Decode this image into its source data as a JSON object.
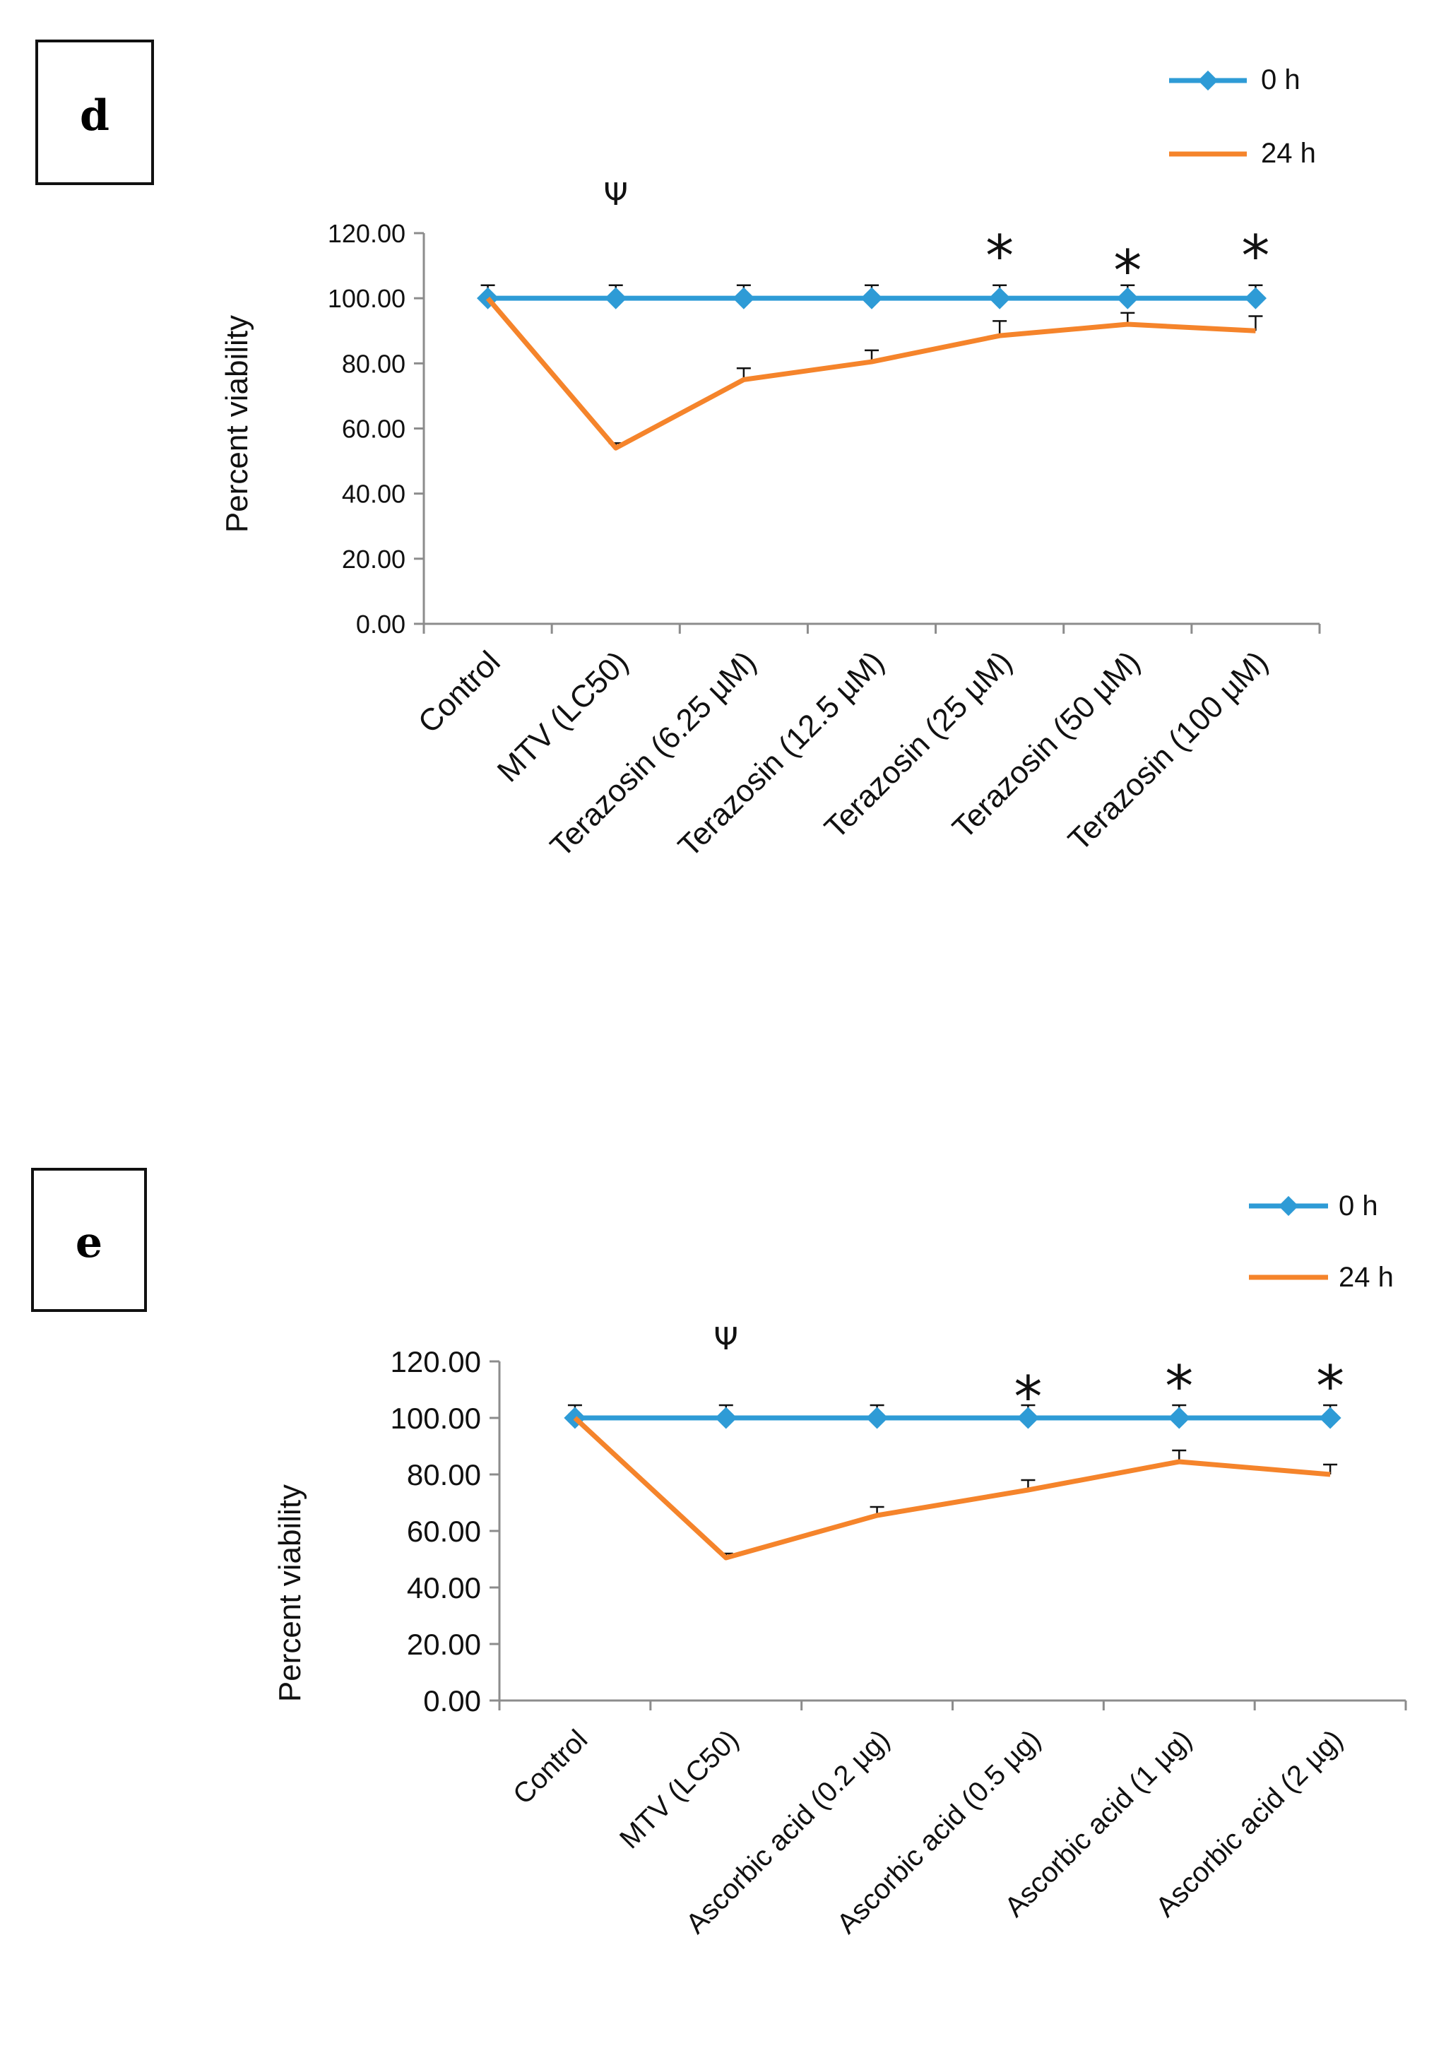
{
  "colors": {
    "series_0h": "#2E9BD6",
    "series_24h": "#F5842B",
    "axis": "#8c8c8c",
    "text": "#111111"
  },
  "chart_data": [
    {
      "panel_label": "d",
      "type": "line",
      "ylabel": "Percent viability",
      "ylim": [
        0,
        120
      ],
      "yticks": [
        0,
        20,
        40,
        60,
        80,
        100,
        120
      ],
      "ytick_labels": [
        "0.00",
        "20.00",
        "40.00",
        "60.00",
        "80.00",
        "100.00",
        "120.00"
      ],
      "categories": [
        "Control",
        "MTV (LC50)",
        "Terazosin (6.25 µM)",
        "Terazosin (12.5 µM)",
        "Terazosin (25 µM)",
        "Terazosin (50 µM)",
        "Terazosin (100 µM)"
      ],
      "series": [
        {
          "name": "0 h",
          "values": [
            100,
            100,
            100,
            100,
            100,
            100,
            100
          ],
          "errors": [
            4,
            4,
            4,
            4,
            4,
            4,
            4
          ],
          "marker": "diamond"
        },
        {
          "name": "24 h",
          "values": [
            100,
            54,
            75,
            80.5,
            88.5,
            92,
            90
          ],
          "errors": [
            0,
            1.5,
            3.5,
            3.5,
            4.5,
            3.5,
            4.5
          ],
          "marker": "none"
        }
      ],
      "annotations": [
        "",
        "Ψ",
        "",
        "",
        "*",
        "*",
        "*"
      ],
      "legend": "top-right"
    },
    {
      "panel_label": "e",
      "type": "line",
      "ylabel": "Percent viability",
      "ylim": [
        0,
        120
      ],
      "yticks": [
        0,
        20,
        40,
        60,
        80,
        100,
        120
      ],
      "ytick_labels": [
        "0.00",
        "20.00",
        "40.00",
        "60.00",
        "80.00",
        "100.00",
        "120.00"
      ],
      "categories": [
        "Control",
        "MTV (LC50)",
        "Ascorbic acid (0.2 µg)",
        "Ascorbic acid (0.5 µg)",
        "Ascorbic acid (1 µg)",
        "Ascorbic acid (2 µg)"
      ],
      "series": [
        {
          "name": "0 h",
          "values": [
            100,
            100,
            100,
            100,
            100,
            100
          ],
          "errors": [
            4.5,
            4.5,
            4.5,
            4.5,
            4.5,
            4.5
          ],
          "marker": "diamond"
        },
        {
          "name": "24 h",
          "values": [
            100,
            50.5,
            65.5,
            74.5,
            84.5,
            80
          ],
          "errors": [
            0,
            1.5,
            3,
            3.5,
            4,
            3.5
          ],
          "marker": "none"
        }
      ],
      "annotations": [
        "",
        "Ψ",
        "",
        "*",
        "*",
        "*"
      ],
      "legend": "top-right"
    }
  ]
}
